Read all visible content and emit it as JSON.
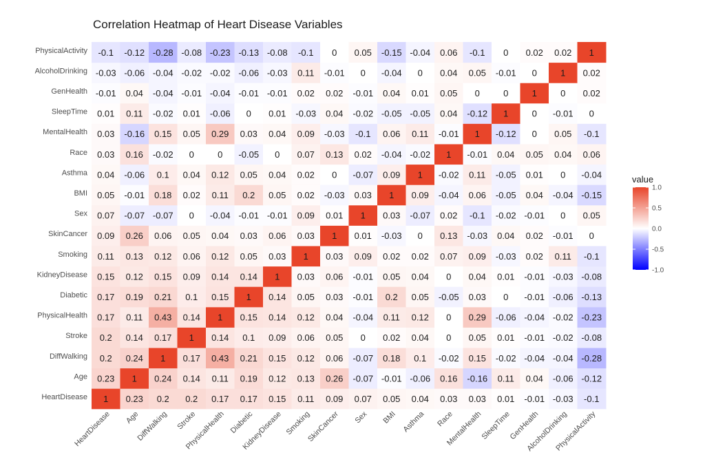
{
  "chart_data": {
    "type": "heatmap",
    "title": "Correlation Heatmap of Heart Disease Variables",
    "xlabel": "",
    "ylabel": "",
    "variables": [
      "HeartDisease",
      "Age",
      "DiffWalking",
      "Stroke",
      "PhysicalHealth",
      "Diabetic",
      "KidneyDisease",
      "Smoking",
      "SkinCancer",
      "Sex",
      "BMI",
      "Asthma",
      "Race",
      "MentalHealth",
      "SleepTime",
      "GenHealth",
      "AlcoholDrinking",
      "PhysicalActivity"
    ],
    "matrix": [
      [
        1,
        0.23,
        0.2,
        0.2,
        0.17,
        0.17,
        0.15,
        0.11,
        0.09,
        0.07,
        0.05,
        0.04,
        0.03,
        0.03,
        0.01,
        -0.01,
        -0.03,
        -0.1
      ],
      [
        0.23,
        1,
        0.24,
        0.14,
        0.11,
        0.19,
        0.12,
        0.13,
        0.26,
        -0.07,
        -0.01,
        -0.06,
        0.16,
        -0.16,
        0.11,
        0.04,
        -0.06,
        -0.12
      ],
      [
        0.2,
        0.24,
        1,
        0.17,
        0.43,
        0.21,
        0.15,
        0.12,
        0.06,
        -0.07,
        0.18,
        0.1,
        -0.02,
        0.15,
        -0.02,
        -0.04,
        -0.04,
        -0.28
      ],
      [
        0.2,
        0.14,
        0.17,
        1,
        0.14,
        0.1,
        0.09,
        0.06,
        0.05,
        0,
        0.02,
        0.04,
        0,
        0.05,
        0.01,
        -0.01,
        -0.02,
        -0.08
      ],
      [
        0.17,
        0.11,
        0.43,
        0.14,
        1,
        0.15,
        0.14,
        0.12,
        0.04,
        -0.04,
        0.11,
        0.12,
        0,
        0.29,
        -0.06,
        -0.04,
        -0.02,
        -0.23
      ],
      [
        0.17,
        0.19,
        0.21,
        0.1,
        0.15,
        1,
        0.14,
        0.05,
        0.03,
        -0.01,
        0.2,
        0.05,
        -0.05,
        0.03,
        0,
        -0.01,
        -0.06,
        -0.13
      ],
      [
        0.15,
        0.12,
        0.15,
        0.09,
        0.14,
        0.14,
        1,
        0.03,
        0.06,
        -0.01,
        0.05,
        0.04,
        0,
        0.04,
        0.01,
        -0.01,
        -0.03,
        -0.08
      ],
      [
        0.11,
        0.13,
        0.12,
        0.06,
        0.12,
        0.05,
        0.03,
        1,
        0.03,
        0.09,
        0.02,
        0.02,
        0.07,
        0.09,
        -0.03,
        0.02,
        0.11,
        -0.1
      ],
      [
        0.09,
        0.26,
        0.06,
        0.05,
        0.04,
        0.03,
        0.06,
        0.03,
        1,
        0.01,
        -0.03,
        0,
        0.13,
        -0.03,
        0.04,
        0.02,
        -0.01,
        0
      ],
      [
        0.07,
        -0.07,
        -0.07,
        0,
        -0.04,
        -0.01,
        -0.01,
        0.09,
        0.01,
        1,
        0.03,
        -0.07,
        0.02,
        -0.1,
        -0.02,
        -0.01,
        0,
        0.05
      ],
      [
        0.05,
        -0.01,
        0.18,
        0.02,
        0.11,
        0.2,
        0.05,
        0.02,
        -0.03,
        0.03,
        1,
        0.09,
        -0.04,
        0.06,
        -0.05,
        0.04,
        -0.04,
        -0.15
      ],
      [
        0.04,
        -0.06,
        0.1,
        0.04,
        0.12,
        0.05,
        0.04,
        0.02,
        0,
        -0.07,
        0.09,
        1,
        -0.02,
        0.11,
        -0.05,
        0.01,
        0,
        -0.04
      ],
      [
        0.03,
        0.16,
        -0.02,
        0,
        0,
        -0.05,
        0,
        0.07,
        0.13,
        0.02,
        -0.04,
        -0.02,
        1,
        -0.01,
        0.04,
        0.05,
        0.04,
        0.06
      ],
      [
        0.03,
        -0.16,
        0.15,
        0.05,
        0.29,
        0.03,
        0.04,
        0.09,
        -0.03,
        -0.1,
        0.06,
        0.11,
        -0.01,
        1,
        -0.12,
        0,
        0.05,
        -0.1
      ],
      [
        0.01,
        0.11,
        -0.02,
        0.01,
        -0.06,
        0,
        0.01,
        -0.03,
        0.04,
        -0.02,
        -0.05,
        -0.05,
        0.04,
        -0.12,
        1,
        0,
        -0.01,
        0
      ],
      [
        -0.01,
        0.04,
        -0.04,
        -0.01,
        -0.04,
        -0.01,
        -0.01,
        0.02,
        0.02,
        -0.01,
        0.04,
        0.01,
        0.05,
        0,
        0,
        1,
        0,
        0.02
      ],
      [
        -0.03,
        -0.06,
        -0.04,
        -0.02,
        -0.02,
        -0.06,
        -0.03,
        0.11,
        -0.01,
        0,
        -0.04,
        0,
        0.04,
        0.05,
        -0.01,
        0,
        1,
        0.02
      ],
      [
        -0.1,
        -0.12,
        -0.28,
        -0.08,
        -0.23,
        -0.13,
        -0.08,
        -0.1,
        0,
        0.05,
        -0.15,
        -0.04,
        0.06,
        -0.1,
        0,
        0.02,
        0.02,
        1
      ]
    ],
    "legend": {
      "title": "value",
      "ticks": [
        "1.0",
        "0.5",
        "0.0",
        "-0.5",
        "-1.0"
      ],
      "tick_values": [
        1,
        0.5,
        0,
        -0.5,
        -1
      ],
      "range": [
        -1,
        1
      ],
      "placement": "right"
    },
    "colors": {
      "low": "#0000ff",
      "mid": "#ffffff",
      "high": "#e8452a"
    },
    "grid": false
  }
}
